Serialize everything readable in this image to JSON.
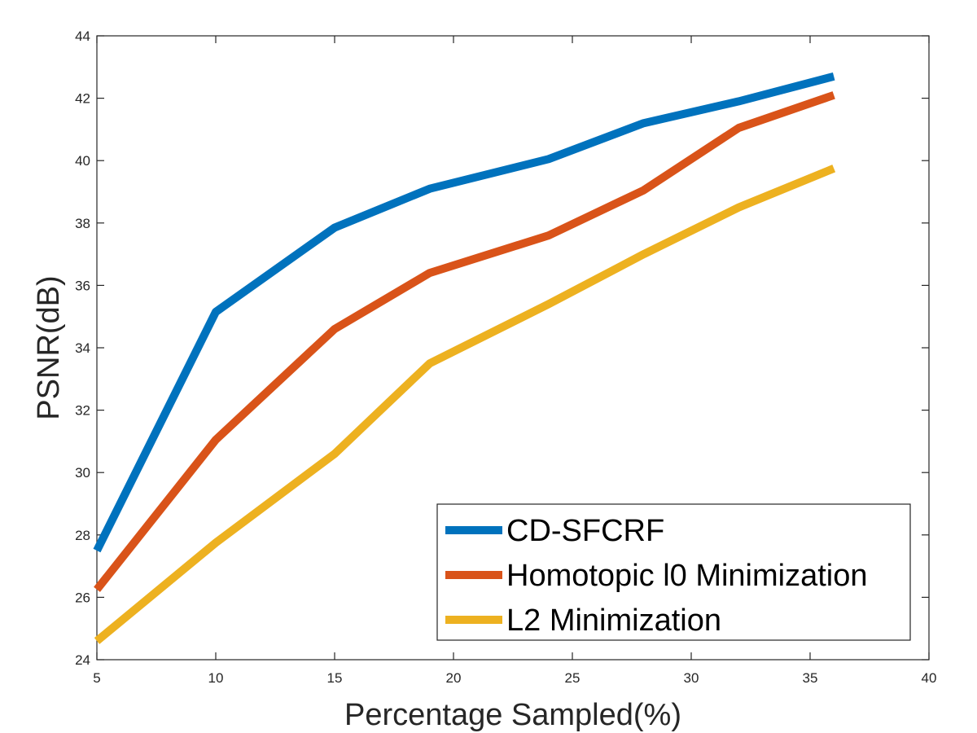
{
  "chart_data": {
    "type": "line",
    "title": "",
    "xlabel": "Percentage Sampled(%)",
    "ylabel": "PSNR(dB)",
    "xlim": [
      5,
      40
    ],
    "ylim": [
      24,
      44
    ],
    "xticks": [
      5,
      10,
      15,
      20,
      25,
      30,
      35,
      40
    ],
    "yticks": [
      24,
      26,
      28,
      30,
      32,
      34,
      36,
      38,
      40,
      42,
      44
    ],
    "x": [
      5,
      10,
      15,
      19,
      24,
      28,
      32,
      36
    ],
    "grid": false,
    "legend_position": "bottom-right",
    "series": [
      {
        "name": "CD-SFCRF",
        "color": "#0072BD",
        "values": [
          27.5,
          35.15,
          37.85,
          39.1,
          40.05,
          41.2,
          41.9,
          42.7
        ]
      },
      {
        "name": "Homotopic l0 Minimization",
        "color": "#D95319",
        "values": [
          26.25,
          31.05,
          34.6,
          36.4,
          37.6,
          39.05,
          41.05,
          42.1
        ]
      },
      {
        "name": "L2 Minimization",
        "color": "#EDB120",
        "values": [
          24.6,
          27.75,
          30.6,
          33.5,
          35.4,
          37.0,
          38.5,
          39.75
        ]
      }
    ]
  }
}
